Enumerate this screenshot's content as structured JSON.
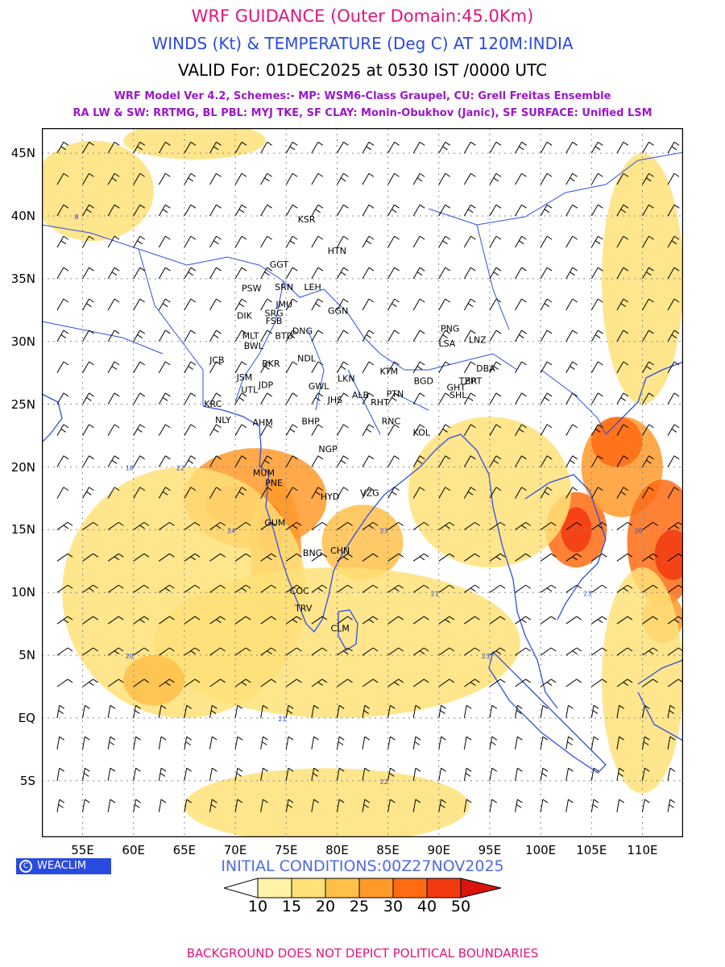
{
  "header": {
    "title": "WRF GUIDANCE (Outer Domain:45.0Km)",
    "subtitle": "WINDS (Kt) & TEMPERATURE (Deg C) AT 120M:INDIA",
    "valid": "VALID For: 01DEC2025 at 0530 IST /0000 UTC",
    "model_line1": "WRF Model Ver 4.2, Schemes:- MP: WSM6-Class Graupel, CU: Grell Freitas Ensemble",
    "model_line2": "RA LW & SW: RRTMG, BL PBL: MYJ TKE, SF CLAY: Monin-Obukhov (Janic), SF SURFACE: Unified LSM"
  },
  "axes": {
    "lat_labels": [
      "45N",
      "40N",
      "35N",
      "30N",
      "25N",
      "20N",
      "15N",
      "10N",
      "5N",
      "EQ",
      "5S"
    ],
    "lat_values": [
      45,
      40,
      35,
      30,
      25,
      20,
      15,
      10,
      5,
      0,
      -5
    ],
    "lon_labels": [
      "55E",
      "60E",
      "65E",
      "70E",
      "75E",
      "80E",
      "85E",
      "90E",
      "95E",
      "100E",
      "105E",
      "110E"
    ],
    "lon_values": [
      55,
      60,
      65,
      70,
      75,
      80,
      85,
      90,
      95,
      100,
      105,
      110
    ],
    "lon_range": [
      51,
      114
    ],
    "lat_range": [
      -9.5,
      47
    ]
  },
  "stations": [
    {
      "name": "KSR",
      "lon": 77.0,
      "lat": 39.5
    },
    {
      "name": "HTN",
      "lon": 80.0,
      "lat": 37.0
    },
    {
      "name": "GGT",
      "lon": 74.3,
      "lat": 35.9
    },
    {
      "name": "PSW",
      "lon": 71.6,
      "lat": 34.0
    },
    {
      "name": "SRN",
      "lon": 74.8,
      "lat": 34.1
    },
    {
      "name": "LEH",
      "lon": 77.6,
      "lat": 34.1
    },
    {
      "name": "JMU",
      "lon": 74.8,
      "lat": 32.7
    },
    {
      "name": "GGN",
      "lon": 80.1,
      "lat": 32.2
    },
    {
      "name": "DIK",
      "lon": 70.9,
      "lat": 31.8
    },
    {
      "name": "SRG",
      "lon": 73.8,
      "lat": 32.0
    },
    {
      "name": "FSB",
      "lon": 73.8,
      "lat": 31.4
    },
    {
      "name": "PNG",
      "lon": 91.1,
      "lat": 30.8
    },
    {
      "name": "MLT",
      "lon": 71.5,
      "lat": 30.2
    },
    {
      "name": "BTD",
      "lon": 74.8,
      "lat": 30.2
    },
    {
      "name": "DNG",
      "lon": 76.6,
      "lat": 30.6
    },
    {
      "name": "BWL",
      "lon": 71.8,
      "lat": 29.4
    },
    {
      "name": "LSA",
      "lon": 90.8,
      "lat": 29.6
    },
    {
      "name": "LNZ",
      "lon": 93.8,
      "lat": 29.9
    },
    {
      "name": "JCB",
      "lon": 68.2,
      "lat": 28.3
    },
    {
      "name": "NDL",
      "lon": 77.0,
      "lat": 28.4
    },
    {
      "name": "BKR",
      "lon": 73.5,
      "lat": 28.0
    },
    {
      "name": "KTM",
      "lon": 85.1,
      "lat": 27.4
    },
    {
      "name": "BGD",
      "lon": 88.5,
      "lat": 26.6
    },
    {
      "name": "TZP",
      "lon": 92.8,
      "lat": 26.6
    },
    {
      "name": "DBA",
      "lon": 94.6,
      "lat": 27.6
    },
    {
      "name": "JSM",
      "lon": 70.9,
      "lat": 26.9
    },
    {
      "name": "LKN",
      "lon": 80.9,
      "lat": 26.8
    },
    {
      "name": "GHT",
      "lon": 91.7,
      "lat": 26.1
    },
    {
      "name": "BRT",
      "lon": 93.4,
      "lat": 26.6
    },
    {
      "name": "JDP",
      "lon": 73.0,
      "lat": 26.3
    },
    {
      "name": "GWL",
      "lon": 78.2,
      "lat": 26.2
    },
    {
      "name": "UTL",
      "lon": 71.4,
      "lat": 25.9
    },
    {
      "name": "SHL",
      "lon": 91.9,
      "lat": 25.5
    },
    {
      "name": "ALB",
      "lon": 82.3,
      "lat": 25.5
    },
    {
      "name": "PTN",
      "lon": 85.7,
      "lat": 25.6
    },
    {
      "name": "JHS",
      "lon": 79.8,
      "lat": 25.1
    },
    {
      "name": "RHT",
      "lon": 84.2,
      "lat": 24.9
    },
    {
      "name": "KRC",
      "lon": 67.8,
      "lat": 24.8
    },
    {
      "name": "RNC",
      "lon": 85.3,
      "lat": 23.4
    },
    {
      "name": "NLY",
      "lon": 68.8,
      "lat": 23.5
    },
    {
      "name": "AHM",
      "lon": 72.7,
      "lat": 23.3
    },
    {
      "name": "BHP",
      "lon": 77.4,
      "lat": 23.4
    },
    {
      "name": "KOL",
      "lon": 88.3,
      "lat": 22.5
    },
    {
      "name": "NGP",
      "lon": 79.1,
      "lat": 21.2
    },
    {
      "name": "MUM",
      "lon": 72.8,
      "lat": 19.3
    },
    {
      "name": "PNE",
      "lon": 73.8,
      "lat": 18.5
    },
    {
      "name": "HYD",
      "lon": 79.3,
      "lat": 17.4
    },
    {
      "name": "VZG",
      "lon": 83.2,
      "lat": 17.7
    },
    {
      "name": "GUM",
      "lon": 73.9,
      "lat": 15.3
    },
    {
      "name": "BNG",
      "lon": 77.6,
      "lat": 12.9
    },
    {
      "name": "CHN",
      "lon": 80.3,
      "lat": 13.1
    },
    {
      "name": "COC",
      "lon": 76.3,
      "lat": 9.9
    },
    {
      "name": "TRV",
      "lon": 76.7,
      "lat": 8.5
    },
    {
      "name": "CLM",
      "lon": 80.3,
      "lat": 6.9
    }
  ],
  "shading": [
    {
      "lon": 72,
      "lat": 17.5,
      "rx": 7,
      "ry": 4,
      "level": 25
    },
    {
      "lon": 70,
      "lat": 17,
      "rx": 3,
      "ry": 1.5,
      "level": 30
    },
    {
      "lon": 74,
      "lat": 13,
      "rx": 2.5,
      "ry": 6,
      "level": 25
    },
    {
      "lon": 73.5,
      "lat": 15,
      "rx": 1.2,
      "ry": 2,
      "level": 30
    },
    {
      "lon": 82.5,
      "lat": 14,
      "rx": 4,
      "ry": 3,
      "level": 20
    },
    {
      "lon": 103.5,
      "lat": 15,
      "rx": 3,
      "ry": 3,
      "level": 30
    },
    {
      "lon": 103.5,
      "lat": 15,
      "rx": 1.5,
      "ry": 1.8,
      "level": 40
    },
    {
      "lon": 108,
      "lat": 20,
      "rx": 4,
      "ry": 4,
      "level": 25
    },
    {
      "lon": 107.5,
      "lat": 22,
      "rx": 2.5,
      "ry": 2,
      "level": 30
    },
    {
      "lon": 112,
      "lat": 14,
      "rx": 3.5,
      "ry": 5,
      "level": 30
    },
    {
      "lon": 113,
      "lat": 13,
      "rx": 1.8,
      "ry": 2,
      "level": 40
    },
    {
      "lon": 112,
      "lat": 8,
      "rx": 2,
      "ry": 2,
      "level": 25
    },
    {
      "lon": 65,
      "lat": 10,
      "rx": 12,
      "ry": 10,
      "level": 15
    },
    {
      "lon": 80,
      "lat": 6,
      "rx": 18,
      "ry": 6,
      "level": 15
    },
    {
      "lon": 95,
      "lat": 18,
      "rx": 8,
      "ry": 6,
      "level": 15
    },
    {
      "lon": 56,
      "lat": 42,
      "rx": 6,
      "ry": 4,
      "level": 15
    },
    {
      "lon": 66,
      "lat": 46,
      "rx": 7,
      "ry": 1.5,
      "level": 15
    },
    {
      "lon": 110,
      "lat": 3,
      "rx": 4,
      "ry": 9,
      "level": 15
    },
    {
      "lon": 62,
      "lat": 3,
      "rx": 3,
      "ry": 2,
      "level": 20
    },
    {
      "lon": 79,
      "lat": -7,
      "rx": 14,
      "ry": 3,
      "level": 15
    },
    {
      "lon": 110,
      "lat": 35,
      "rx": 4,
      "ry": 10,
      "level": 15
    }
  ],
  "colorbar": {
    "levels": [
      10,
      15,
      20,
      25,
      30,
      40,
      50
    ],
    "colors": [
      "#ffffff",
      "#fff3a8",
      "#ffe178",
      "#ffc04a",
      "#ff9a2a",
      "#ff6b12",
      "#f23a10",
      "#d9140c"
    ]
  },
  "wind_barbs_note_temps": [
    {
      "lon": 60,
      "lat": 20,
      "val": "18"
    },
    {
      "lon": 65,
      "lat": 20,
      "val": "22"
    },
    {
      "lon": 70,
      "lat": 15,
      "val": "24"
    },
    {
      "lon": 85,
      "lat": 15,
      "val": "23"
    },
    {
      "lon": 90,
      "lat": 10,
      "val": "21"
    },
    {
      "lon": 95,
      "lat": 5,
      "val": "23"
    },
    {
      "lon": 105,
      "lat": 10,
      "val": "23"
    },
    {
      "lon": 110,
      "lat": 15,
      "val": "26"
    },
    {
      "lon": 60,
      "lat": 5,
      "val": "20"
    },
    {
      "lon": 75,
      "lat": 0,
      "val": "21"
    },
    {
      "lon": 85,
      "lat": -5,
      "val": "22"
    },
    {
      "lon": 55,
      "lat": 40,
      "val": "8"
    }
  ],
  "footer": {
    "brand": "WEACLIM",
    "init": "INITIAL CONDITIONS:00Z27NOV2025",
    "disclaimer": "BACKGROUND DOES NOT DEPICT POLITICAL BOUNDARIES"
  }
}
